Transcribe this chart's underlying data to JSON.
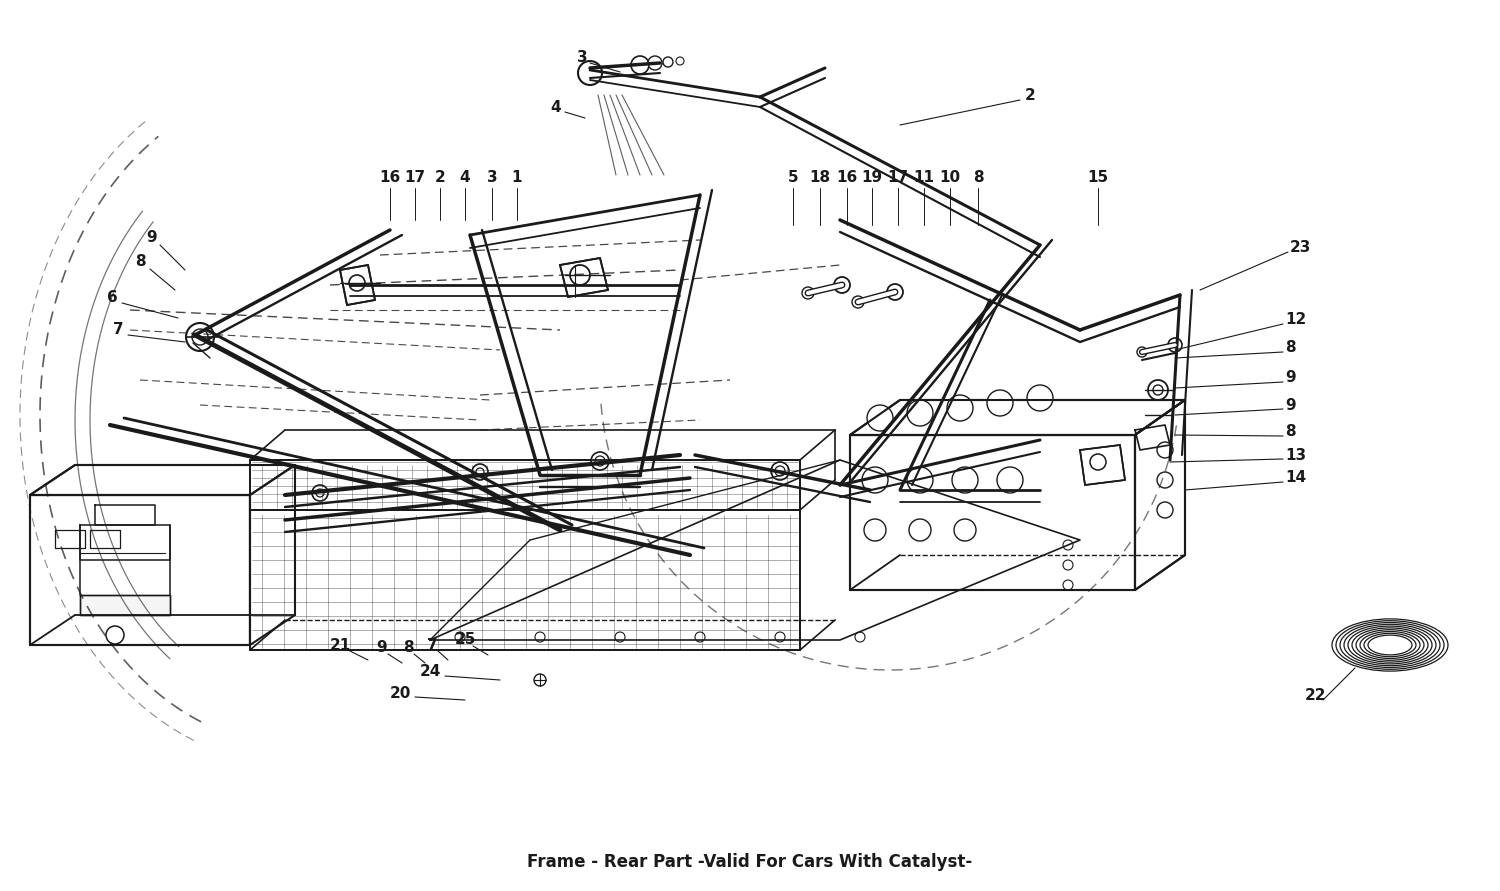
{
  "title": "Frame - Rear Part -Valid For Cars With Catalyst-",
  "bg_color": "#ffffff",
  "line_color": "#1a1a1a",
  "fig_width": 15.0,
  "fig_height": 8.91,
  "note": "Technical schematic Ferrari frame rear part with catalyst"
}
